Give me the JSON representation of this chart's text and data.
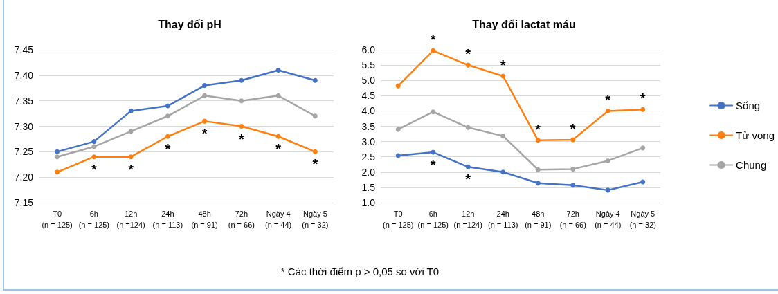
{
  "chart_data": [
    {
      "type": "line",
      "title": "Thay đổi pH",
      "categories": [
        "T0\n(n = 125)",
        "6h\n(n = 125)",
        "12h\n(n =124)",
        "24h\n(n = 113)",
        "48h\n(n = 91)",
        "72h\n(n = 66)",
        "Ngày 4\n(n = 44)",
        "Ngày 5\n(n = 32)"
      ],
      "series": [
        {
          "color": "#4472c4",
          "values": [
            7.25,
            7.27,
            7.33,
            7.34,
            7.38,
            7.39,
            7.41,
            7.39
          ]
        },
        {
          "color": "#ff7f0e",
          "values": [
            7.21,
            7.24,
            7.24,
            7.28,
            7.31,
            7.3,
            7.28,
            7.25
          ]
        },
        {
          "color": "#a5a5a5",
          "values": [
            7.24,
            7.26,
            7.29,
            7.32,
            7.36,
            7.35,
            7.36,
            7.32
          ]
        }
      ],
      "ylim": [
        7.15,
        7.45
      ],
      "yticks": [
        {
          "value": 7.15,
          "label": "7.15"
        },
        {
          "value": 7.2,
          "label": "7.20"
        },
        {
          "value": 7.25,
          "label": "7.25"
        },
        {
          "value": 7.3,
          "label": "7.30"
        },
        {
          "value": 7.35,
          "label": "7.35"
        },
        {
          "value": 7.4,
          "label": "7.40"
        },
        {
          "value": 7.45,
          "label": "7.45"
        }
      ],
      "grid": "y",
      "marker": "circle",
      "legend": false,
      "annotations": [
        {
          "text": "*",
          "x": "6h\n(n = 125)",
          "y": 7.24
        },
        {
          "text": "*",
          "x": "12h\n(n =124)",
          "y": 7.24
        },
        {
          "text": "*",
          "x": "24h\n(n = 113)",
          "y": 7.28
        },
        {
          "text": "*",
          "x": "48h\n(n = 91)",
          "y": 7.31
        },
        {
          "text": "*",
          "x": "72h\n(n = 66)",
          "y": 7.3
        },
        {
          "text": "*",
          "x": "Ngày 4\n(n = 44)",
          "y": 7.28
        },
        {
          "text": "*",
          "x": "Ngày 5\n(n = 32)",
          "y": 7.25
        },
        "* Các thời điểm p > 0,05 so với T0"
      ]
    },
    {
      "type": "line",
      "title": "Thay đổi lactat máu",
      "categories": [
        "T0\n(n = 125)",
        "6h\n(n = 125)",
        "12h\n(n =124)",
        "24h\n(n = 113)",
        "48h\n(n = 91)",
        "72h\n(n = 66)",
        "Ngày 4\n(n = 44)",
        "Ngày 5\n(n = 32)"
      ],
      "series": [
        {
          "name": "Sống",
          "color": "#4472c4",
          "values": [
            2.54,
            2.65,
            2.17,
            2.0,
            1.64,
            1.57,
            1.41,
            1.68
          ]
        },
        {
          "name": "Tử vong",
          "color": "#ff7f0e",
          "values": [
            4.82,
            5.97,
            5.5,
            5.14,
            3.04,
            3.06,
            4.0,
            4.05
          ]
        },
        {
          "name": "Chung",
          "color": "#a5a5a5",
          "values": [
            3.4,
            3.97,
            3.46,
            3.18,
            2.08,
            2.1,
            2.37,
            2.79
          ]
        }
      ],
      "ylim": [
        1,
        6
      ],
      "yticks": [
        {
          "value": 1,
          "label": "1.0"
        },
        {
          "value": 1.5,
          "label": "1.5"
        },
        {
          "value": 2,
          "label": "2.0"
        },
        {
          "value": 2.5,
          "label": "2.5"
        },
        {
          "value": 3,
          "label": "3.0"
        },
        {
          "value": 3.5,
          "label": "3.5"
        },
        {
          "value": 4,
          "label": "4.0"
        },
        {
          "value": 4.5,
          "label": "4.5"
        },
        {
          "value": 5,
          "label": "5.0"
        },
        {
          "value": 5.5,
          "label": "5.5"
        },
        {
          "value": 6,
          "label": "6.0"
        }
      ],
      "grid": "y",
      "marker": "circle",
      "legend": "right",
      "annotations": [
        {
          "text": "*",
          "x": "6h\n(n = 125)",
          "y": 5.97
        },
        {
          "text": "*",
          "x": "12h\n(n =124)",
          "y": 5.5
        },
        {
          "text": "*",
          "x": "24h\n(n = 113)",
          "y": 5.14
        },
        {
          "text": "*",
          "x": "48h\n(n = 91)",
          "y": 3.04
        },
        {
          "text": "*",
          "x": "72h\n(n = 66)",
          "y": 3.06
        },
        {
          "text": "*",
          "x": "Ngày 4\n(n = 44)",
          "y": 4.0
        },
        {
          "text": "*",
          "x": "Ngày 5\n(n = 32)",
          "y": 4.05
        },
        {
          "text": "*",
          "x": "6h\n(n = 125)",
          "y": 2.65
        },
        {
          "text": "*",
          "x": "12h\n(n =124)",
          "y": 2.17
        }
      ]
    }
  ]
}
